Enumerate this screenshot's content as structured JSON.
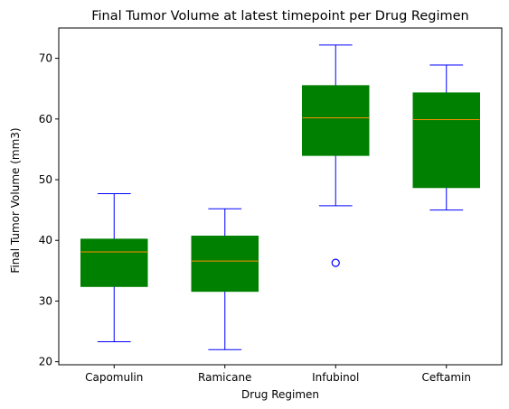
{
  "chart_data": {
    "type": "box",
    "title": "Final Tumor Volume at latest timepoint per Drug Regimen",
    "xlabel": "Drug Regimen",
    "ylabel": "Final Tumor Volume (mm3)",
    "ylim": [
      19.5,
      75
    ],
    "yticks": [
      20,
      30,
      40,
      50,
      60,
      70
    ],
    "grid": false,
    "categories": [
      "Capomulin",
      "Ramicane",
      "Infubinol",
      "Ceftamin"
    ],
    "boxes": [
      {
        "name": "Capomulin",
        "whislo": 23.3,
        "q1": 32.4,
        "med": 38.1,
        "q3": 40.2,
        "whishi": 47.7,
        "fliers": []
      },
      {
        "name": "Ramicane",
        "whislo": 22.0,
        "q1": 31.6,
        "med": 36.6,
        "q3": 40.7,
        "whishi": 45.2,
        "fliers": []
      },
      {
        "name": "Infubinol",
        "whislo": 45.7,
        "q1": 54.0,
        "med": 60.2,
        "q3": 65.5,
        "whishi": 72.2,
        "fliers": [
          36.3
        ]
      },
      {
        "name": "Ceftamin",
        "whislo": 45.0,
        "q1": 48.7,
        "med": 59.9,
        "q3": 64.3,
        "whishi": 68.9,
        "fliers": []
      }
    ],
    "colors": {
      "box_fill": "#008000",
      "whisker": "#0000ff",
      "median": "#ff8c00",
      "flier": "#0000ff",
      "axis": "#000000"
    }
  }
}
